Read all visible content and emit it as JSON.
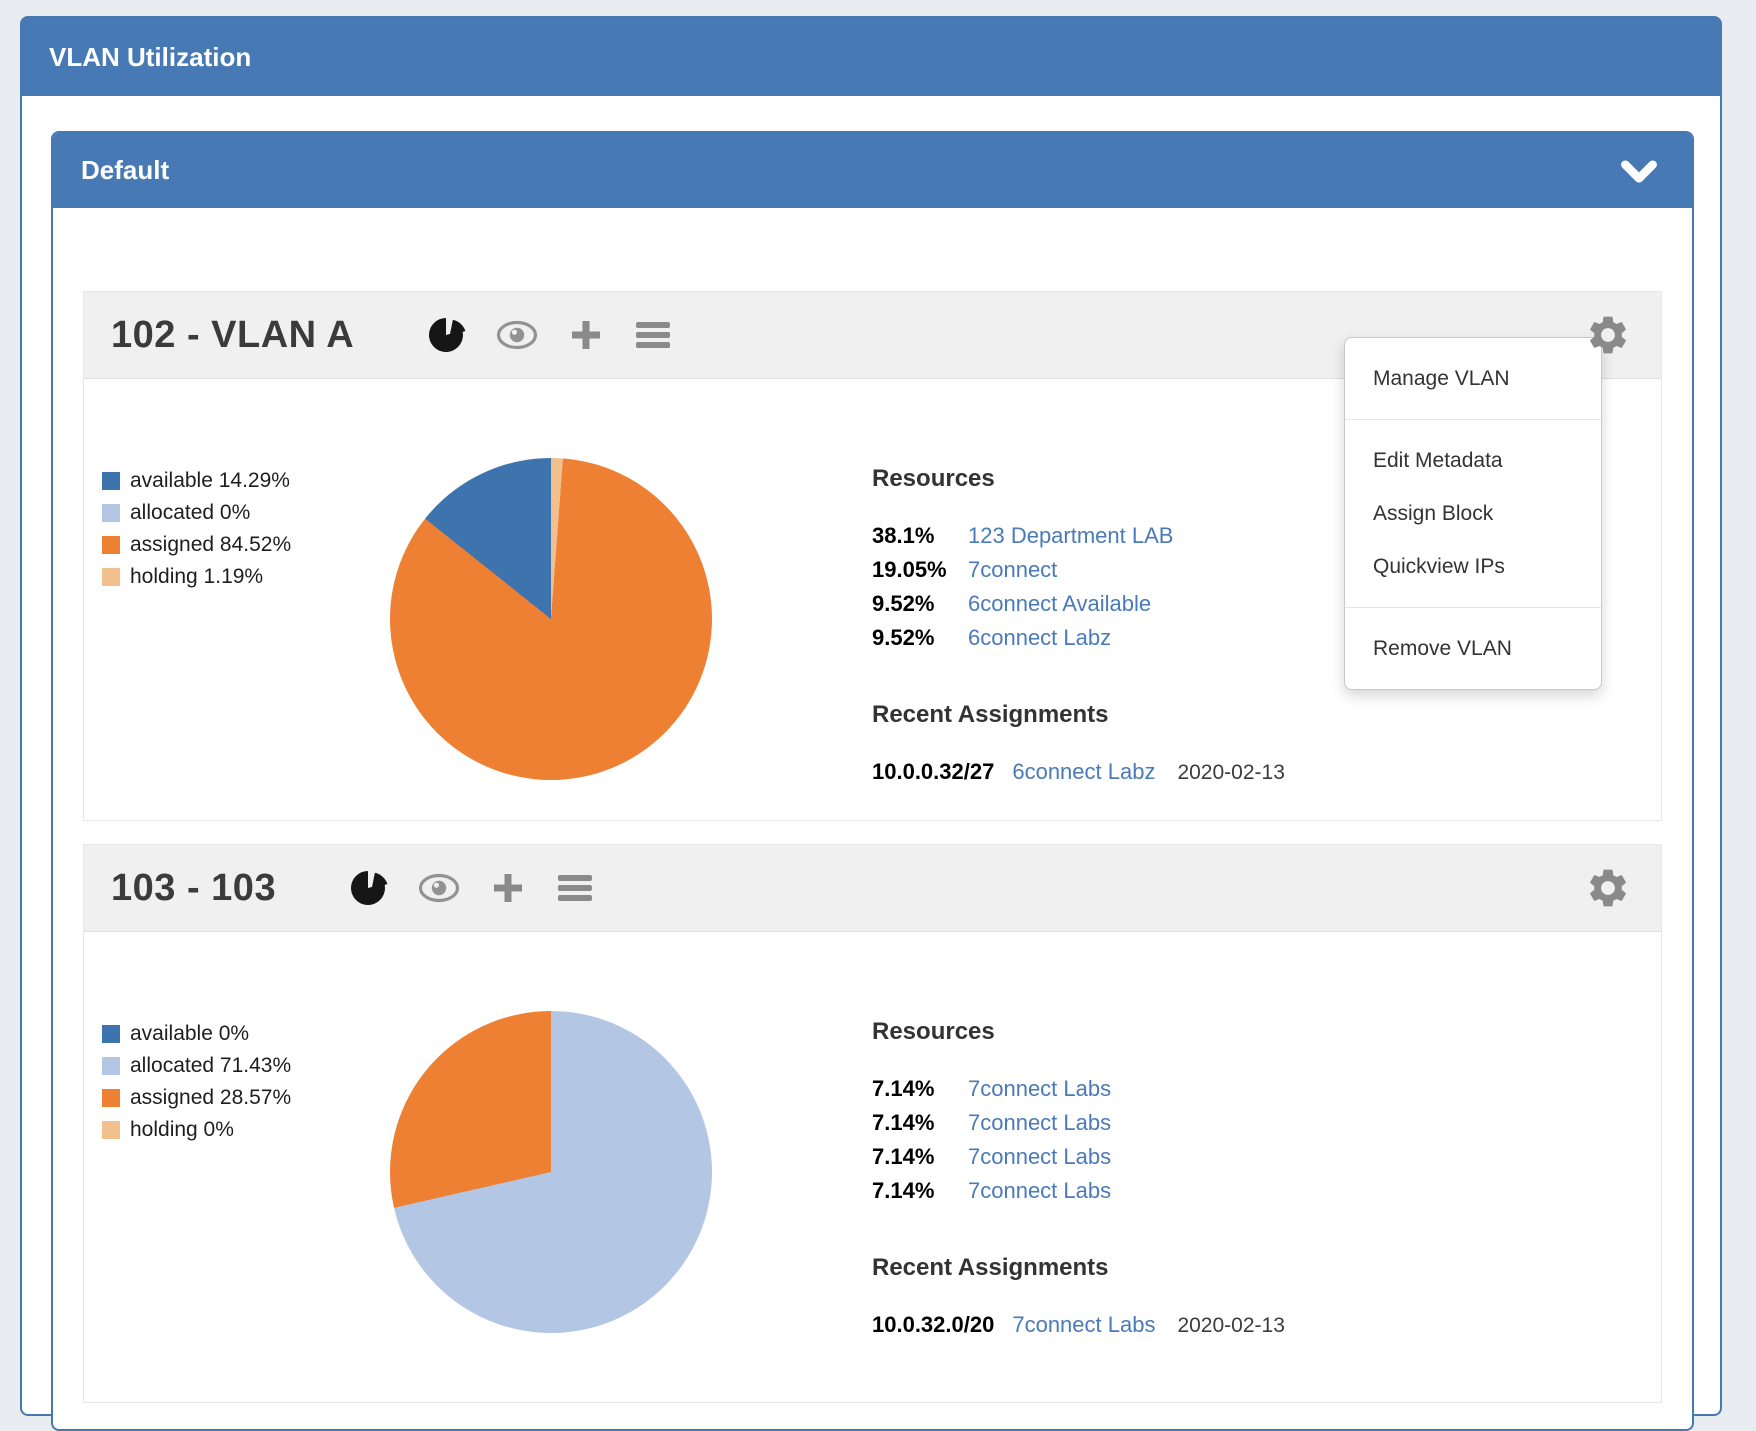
{
  "window": {
    "title": "VLAN Utilization"
  },
  "group": {
    "title": "Default"
  },
  "palette": {
    "available": "#3d74ad",
    "allocated": "#b3c6e4",
    "assigned": "#ee8033",
    "holding": "#f2c08c",
    "header_blue": "#4779b4",
    "link_blue": "#4a7ab8"
  },
  "context_menu": {
    "groups": [
      [
        "Manage VLAN"
      ],
      [
        "Edit Metadata",
        "Assign Block",
        "Quickview IPs"
      ],
      [
        "Remove VLAN"
      ]
    ]
  },
  "vlans": [
    {
      "title": "102 - VLAN A",
      "legend": [
        {
          "key": "available",
          "label": "available 14.29%"
        },
        {
          "key": "allocated",
          "label": "allocated 0%"
        },
        {
          "key": "assigned",
          "label": "assigned 84.52%"
        },
        {
          "key": "holding",
          "label": "holding 1.19%"
        }
      ],
      "pie_slices": [
        {
          "key": "holding",
          "pct": 1.19
        },
        {
          "key": "assigned",
          "pct": 84.52
        },
        {
          "key": "available",
          "pct": 14.29
        }
      ],
      "resources_heading": "Resources",
      "resources": [
        {
          "pct": "38.1%",
          "name": "123 Department LAB"
        },
        {
          "pct": "19.05%",
          "name": "7connect"
        },
        {
          "pct": "9.52%",
          "name": "6connect Available"
        },
        {
          "pct": "9.52%",
          "name": "6connect Labz"
        }
      ],
      "recent_heading": "Recent Assignments",
      "recent": [
        {
          "block": "10.0.0.32/27",
          "name": "6connect Labz",
          "date": "2020-02-13"
        }
      ],
      "menu_open": true
    },
    {
      "title": "103 - 103",
      "legend": [
        {
          "key": "available",
          "label": "available 0%"
        },
        {
          "key": "allocated",
          "label": "allocated 71.43%"
        },
        {
          "key": "assigned",
          "label": "assigned 28.57%"
        },
        {
          "key": "holding",
          "label": "holding 0%"
        }
      ],
      "pie_slices": [
        {
          "key": "allocated",
          "pct": 71.43
        },
        {
          "key": "assigned",
          "pct": 28.57
        }
      ],
      "resources_heading": "Resources",
      "resources": [
        {
          "pct": "7.14%",
          "name": "7connect Labs"
        },
        {
          "pct": "7.14%",
          "name": "7connect Labs"
        },
        {
          "pct": "7.14%",
          "name": "7connect Labs"
        },
        {
          "pct": "7.14%",
          "name": "7connect Labs"
        }
      ],
      "recent_heading": "Recent Assignments",
      "recent": [
        {
          "block": "10.0.32.0/20",
          "name": "7connect Labs",
          "date": "2020-02-13"
        }
      ],
      "menu_open": false
    }
  ],
  "chart_data": [
    {
      "type": "pie",
      "title": "102 - VLAN A utilization",
      "labels": [
        "available",
        "allocated",
        "assigned",
        "holding"
      ],
      "values": [
        14.29,
        0,
        84.52,
        1.19
      ],
      "colors": [
        "#3d74ad",
        "#b3c6e4",
        "#ee8033",
        "#f2c08c"
      ],
      "legend_position": "left"
    },
    {
      "type": "pie",
      "title": "103 - 103 utilization",
      "labels": [
        "available",
        "allocated",
        "assigned",
        "holding"
      ],
      "values": [
        0,
        71.43,
        28.57,
        0
      ],
      "colors": [
        "#3d74ad",
        "#b3c6e4",
        "#ee8033",
        "#f2c08c"
      ],
      "legend_position": "left"
    }
  ]
}
